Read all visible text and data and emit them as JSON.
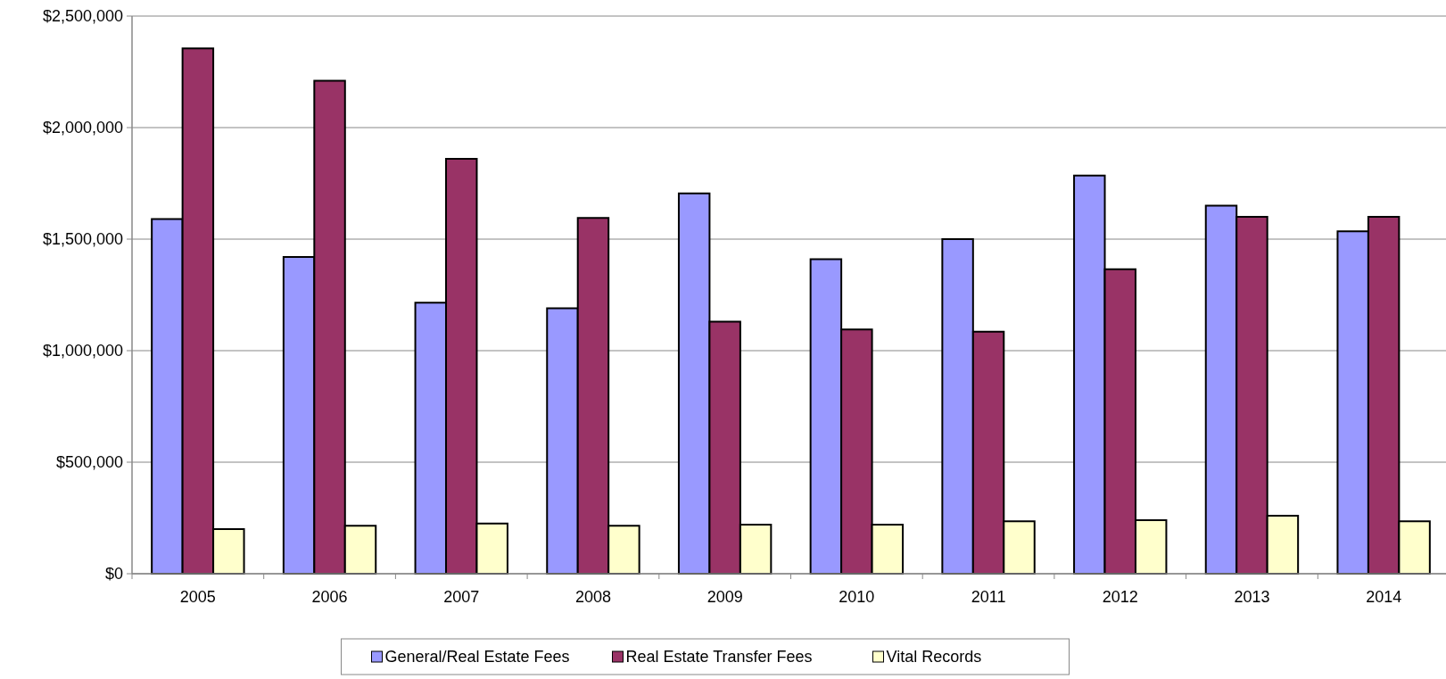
{
  "chart_data": {
    "type": "bar",
    "categories": [
      "2005",
      "2006",
      "2007",
      "2008",
      "2009",
      "2010",
      "2011",
      "2012",
      "2013",
      "2014"
    ],
    "series": [
      {
        "name": "General/Real Estate Fees",
        "color": "#9999ff",
        "values": [
          1590000,
          1420000,
          1215000,
          1190000,
          1705000,
          1410000,
          1500000,
          1785000,
          1650000,
          1535000
        ]
      },
      {
        "name": "Real Estate Transfer Fees",
        "color": "#993366",
        "values": [
          2355000,
          2210000,
          1860000,
          1595000,
          1130000,
          1095000,
          1085000,
          1365000,
          1600000,
          1600000
        ]
      },
      {
        "name": "Vital Records",
        "color": "#ffffcc",
        "values": [
          200000,
          215000,
          225000,
          215000,
          220000,
          220000,
          235000,
          240000,
          260000,
          235000
        ]
      }
    ],
    "ylim": [
      0,
      2500000
    ],
    "yticks": [
      {
        "value": 0,
        "label": "$0"
      },
      {
        "value": 500000,
        "label": "$500,000"
      },
      {
        "value": 1000000,
        "label": "$1,000,000"
      },
      {
        "value": 1500000,
        "label": "$1,500,000"
      },
      {
        "value": 2000000,
        "label": "$2,000,000"
      },
      {
        "value": 2500000,
        "label": "$2,500,000"
      }
    ],
    "grid": "y",
    "legend": "bottom"
  }
}
